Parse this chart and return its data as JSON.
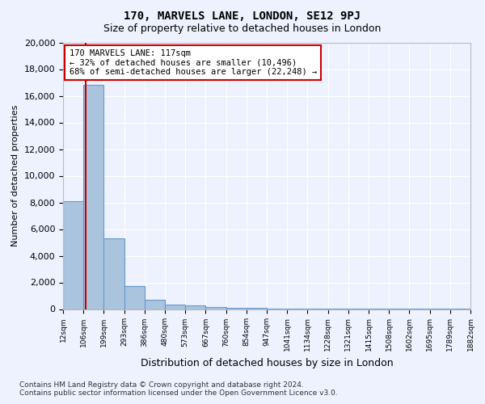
{
  "title_line1": "170, MARVELS LANE, LONDON, SE12 9PJ",
  "title_line2": "Size of property relative to detached houses in London",
  "xlabel": "Distribution of detached houses by size in London",
  "ylabel": "Number of detached properties",
  "annotation_line1": "170 MARVELS LANE: 117sqm",
  "annotation_line2": "← 32% of detached houses are smaller (10,496)",
  "annotation_line3": "68% of semi-detached houses are larger (22,248) →",
  "bar_values": [
    8100,
    16800,
    5300,
    1700,
    700,
    350,
    250,
    150,
    100,
    80,
    60,
    50,
    40,
    30,
    25,
    20,
    15,
    12,
    10,
    8
  ],
  "bin_labels": [
    "12sqm",
    "106sqm",
    "199sqm",
    "293sqm",
    "386sqm",
    "480sqm",
    "573sqm",
    "667sqm",
    "760sqm",
    "854sqm",
    "947sqm",
    "1041sqm",
    "1134sqm",
    "1228sqm",
    "1321sqm",
    "1415sqm",
    "1508sqm",
    "1602sqm",
    "1695sqm",
    "1789sqm",
    "1882sqm"
  ],
  "bar_color": "#aac4de",
  "bar_edge_color": "#6699cc",
  "vline_color": "#cc0000",
  "vline_x": 1.12,
  "ylim": [
    0,
    20000
  ],
  "yticks": [
    0,
    2000,
    4000,
    6000,
    8000,
    10000,
    12000,
    14000,
    16000,
    18000,
    20000
  ],
  "annotation_edge_color": "#cc0000",
  "footnote": "Contains HM Land Registry data © Crown copyright and database right 2024.\nContains public sector information licensed under the Open Government Licence v3.0.",
  "bg_color": "#eef2ff",
  "grid_color": "#ffffff"
}
